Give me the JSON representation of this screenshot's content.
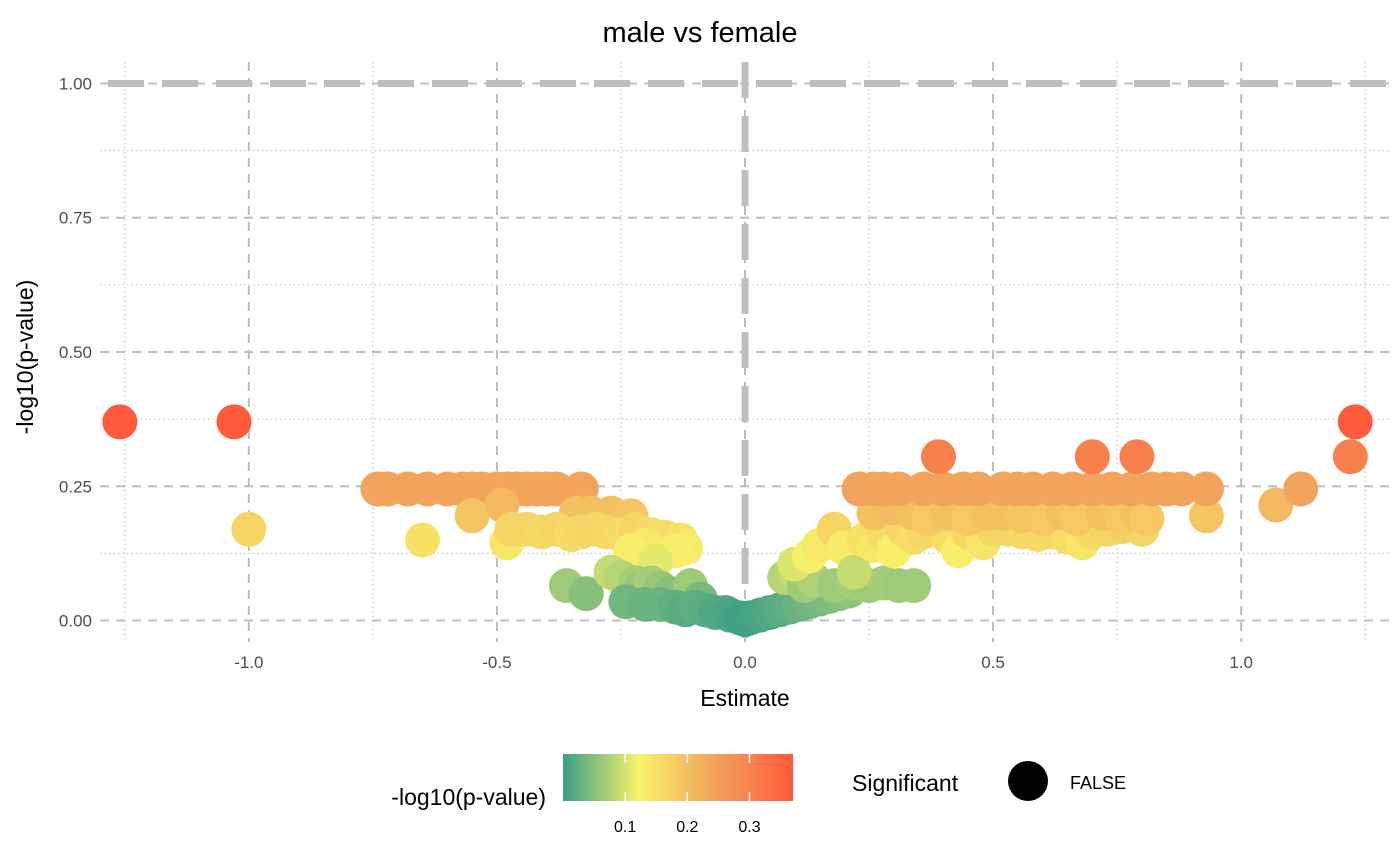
{
  "chart_data": {
    "type": "scatter",
    "title": "male vs female",
    "xlabel": "Estimate",
    "ylabel": "-log10(p-value)",
    "xlim": [
      -1.3,
      1.3
    ],
    "ylim": [
      -0.04,
      1.04
    ],
    "x_ticks": [
      -1.0,
      -0.5,
      0.0,
      0.5,
      1.0
    ],
    "x_tick_labels": [
      "-1.0",
      "-0.5",
      "0.0",
      "0.5",
      "1.0"
    ],
    "y_ticks": [
      0.0,
      0.25,
      0.5,
      0.75,
      1.0
    ],
    "y_tick_labels": [
      "0.00",
      "0.25",
      "0.50",
      "0.75",
      "1.00"
    ],
    "grid": true,
    "reference_lines": {
      "vertical_x": 0,
      "horizontal_y": 1.0
    },
    "color_scale": {
      "title": "-log10(p-value)",
      "min": 0.0,
      "max": 0.37,
      "ticks": [
        0.1,
        0.2,
        0.3
      ],
      "tick_labels": [
        "0.1",
        "0.2",
        "0.3"
      ],
      "colors": [
        "#3a9e86",
        "#f8f36a",
        "#f2a35c",
        "#ff5a3c"
      ]
    },
    "shape_legend": {
      "title": "Significant",
      "entries": [
        "FALSE"
      ]
    },
    "points": [
      [
        -1.26,
        0.37
      ],
      [
        -1.03,
        0.37
      ],
      [
        -1.0,
        0.17
      ],
      [
        -0.74,
        0.245
      ],
      [
        -0.72,
        0.245
      ],
      [
        -0.68,
        0.245
      ],
      [
        -0.64,
        0.245
      ],
      [
        -0.6,
        0.245
      ],
      [
        -0.57,
        0.245
      ],
      [
        -0.55,
        0.245
      ],
      [
        -0.53,
        0.245
      ],
      [
        -0.5,
        0.245
      ],
      [
        -0.48,
        0.245
      ],
      [
        -0.46,
        0.245
      ],
      [
        -0.44,
        0.245
      ],
      [
        -0.42,
        0.245
      ],
      [
        -0.4,
        0.245
      ],
      [
        -0.38,
        0.245
      ],
      [
        -0.33,
        0.245
      ],
      [
        -0.55,
        0.195
      ],
      [
        -0.49,
        0.215
      ],
      [
        -0.31,
        0.2
      ],
      [
        -0.27,
        0.2
      ],
      [
        -0.23,
        0.195
      ],
      [
        -0.34,
        0.2
      ],
      [
        -0.65,
        0.15
      ],
      [
        -0.48,
        0.145
      ],
      [
        -0.47,
        0.17
      ],
      [
        -0.44,
        0.17
      ],
      [
        -0.41,
        0.165
      ],
      [
        -0.38,
        0.17
      ],
      [
        -0.35,
        0.16
      ],
      [
        -0.33,
        0.165
      ],
      [
        -0.3,
        0.17
      ],
      [
        -0.28,
        0.165
      ],
      [
        -0.25,
        0.16
      ],
      [
        -0.22,
        0.17
      ],
      [
        -0.19,
        0.16
      ],
      [
        -0.16,
        0.155
      ],
      [
        -0.13,
        0.15
      ],
      [
        -0.12,
        0.135
      ],
      [
        -0.14,
        0.13
      ],
      [
        -0.2,
        0.14
      ],
      [
        -0.23,
        0.13
      ],
      [
        -0.18,
        0.11
      ],
      [
        -0.36,
        0.065
      ],
      [
        -0.32,
        0.05
      ],
      [
        -0.27,
        0.09
      ],
      [
        -0.25,
        0.08
      ],
      [
        -0.22,
        0.07
      ],
      [
        -0.21,
        0.06
      ],
      [
        -0.19,
        0.07
      ],
      [
        -0.17,
        0.06
      ],
      [
        -0.15,
        0.05
      ],
      [
        -0.11,
        0.065
      ],
      [
        -0.09,
        0.04
      ],
      [
        -0.24,
        0.035
      ],
      [
        -0.2,
        0.03
      ],
      [
        -0.17,
        0.03
      ],
      [
        -0.14,
        0.025
      ],
      [
        -0.12,
        0.02
      ],
      [
        -0.1,
        0.025
      ],
      [
        -0.08,
        0.02
      ],
      [
        -0.06,
        0.015
      ],
      [
        -0.04,
        0.015
      ],
      [
        -0.03,
        0.01
      ],
      [
        -0.01,
        0.005
      ],
      [
        0.0,
        0.002
      ],
      [
        0.01,
        0.005
      ],
      [
        0.03,
        0.01
      ],
      [
        0.05,
        0.015
      ],
      [
        0.07,
        0.02
      ],
      [
        0.09,
        0.025
      ],
      [
        0.11,
        0.03
      ],
      [
        0.13,
        0.035
      ],
      [
        0.15,
        0.04
      ],
      [
        0.17,
        0.045
      ],
      [
        0.19,
        0.05
      ],
      [
        0.21,
        0.055
      ],
      [
        0.08,
        0.08
      ],
      [
        0.1,
        0.09
      ],
      [
        0.12,
        0.065
      ],
      [
        0.14,
        0.075
      ],
      [
        0.18,
        0.065
      ],
      [
        0.22,
        0.07
      ],
      [
        0.25,
        0.065
      ],
      [
        0.28,
        0.07
      ],
      [
        0.31,
        0.065
      ],
      [
        0.34,
        0.065
      ],
      [
        0.1,
        0.105
      ],
      [
        0.13,
        0.12
      ],
      [
        0.15,
        0.14
      ],
      [
        0.18,
        0.17
      ],
      [
        0.2,
        0.135
      ],
      [
        0.22,
        0.09
      ],
      [
        0.24,
        0.15
      ],
      [
        0.26,
        0.14
      ],
      [
        0.28,
        0.16
      ],
      [
        0.3,
        0.13
      ],
      [
        0.32,
        0.17
      ],
      [
        0.34,
        0.155
      ],
      [
        0.36,
        0.165
      ],
      [
        0.38,
        0.17
      ],
      [
        0.41,
        0.155
      ],
      [
        0.43,
        0.13
      ],
      [
        0.45,
        0.165
      ],
      [
        0.48,
        0.145
      ],
      [
        0.5,
        0.17
      ],
      [
        0.53,
        0.17
      ],
      [
        0.56,
        0.165
      ],
      [
        0.59,
        0.16
      ],
      [
        0.62,
        0.165
      ],
      [
        0.65,
        0.155
      ],
      [
        0.68,
        0.145
      ],
      [
        0.7,
        0.165
      ],
      [
        0.73,
        0.17
      ],
      [
        0.76,
        0.175
      ],
      [
        0.8,
        0.17
      ],
      [
        0.26,
        0.2
      ],
      [
        0.3,
        0.21
      ],
      [
        0.34,
        0.2
      ],
      [
        0.37,
        0.19
      ],
      [
        0.41,
        0.2
      ],
      [
        0.45,
        0.19
      ],
      [
        0.49,
        0.2
      ],
      [
        0.52,
        0.2
      ],
      [
        0.56,
        0.195
      ],
      [
        0.6,
        0.19
      ],
      [
        0.64,
        0.2
      ],
      [
        0.67,
        0.19
      ],
      [
        0.72,
        0.2
      ],
      [
        0.76,
        0.19
      ],
      [
        0.79,
        0.2
      ],
      [
        0.81,
        0.19
      ],
      [
        0.93,
        0.195
      ],
      [
        1.07,
        0.215
      ],
      [
        0.23,
        0.245
      ],
      [
        0.26,
        0.245
      ],
      [
        0.28,
        0.245
      ],
      [
        0.31,
        0.245
      ],
      [
        0.36,
        0.245
      ],
      [
        0.4,
        0.245
      ],
      [
        0.44,
        0.245
      ],
      [
        0.47,
        0.245
      ],
      [
        0.52,
        0.245
      ],
      [
        0.55,
        0.245
      ],
      [
        0.58,
        0.245
      ],
      [
        0.62,
        0.245
      ],
      [
        0.66,
        0.245
      ],
      [
        0.7,
        0.245
      ],
      [
        0.74,
        0.245
      ],
      [
        0.78,
        0.245
      ],
      [
        0.82,
        0.245
      ],
      [
        0.85,
        0.245
      ],
      [
        0.88,
        0.245
      ],
      [
        0.93,
        0.245
      ],
      [
        1.12,
        0.245
      ],
      [
        0.39,
        0.305
      ],
      [
        0.7,
        0.305
      ],
      [
        0.79,
        0.305
      ],
      [
        1.22,
        0.305
      ],
      [
        1.23,
        0.37
      ]
    ]
  }
}
